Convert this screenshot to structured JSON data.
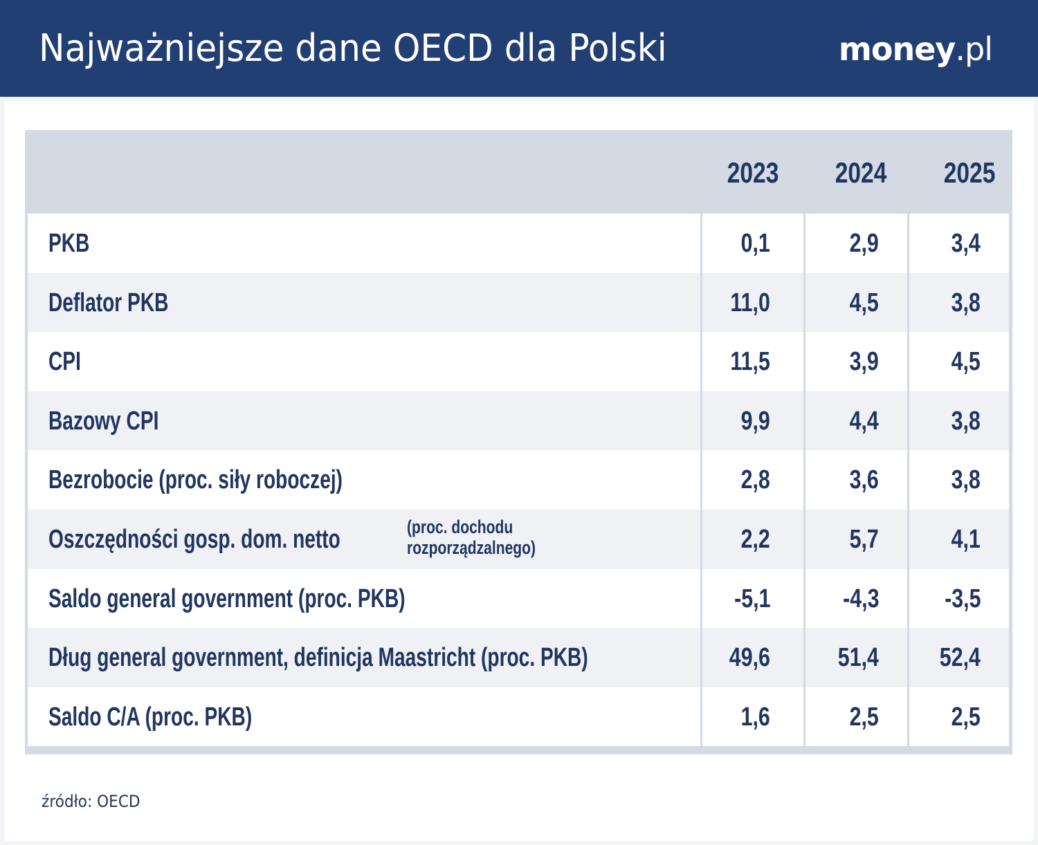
{
  "header": {
    "title": "Najważniejsze dane OECD dla Polski",
    "logo_main": "money",
    "logo_suffix": ".pl"
  },
  "chart_data": {
    "type": "table",
    "title": "Najważniejsze dane OECD dla Polski",
    "columns": [
      "2023",
      "2024",
      "2025"
    ],
    "rows": [
      {
        "label": "PKB",
        "note": "",
        "values": [
          "0,1",
          "2,9",
          "3,4"
        ]
      },
      {
        "label": "Deflator PKB",
        "note": "",
        "values": [
          "11,0",
          "4,5",
          "3,8"
        ]
      },
      {
        "label": "CPI",
        "note": "",
        "values": [
          "11,5",
          "3,9",
          "4,5"
        ]
      },
      {
        "label": "Bazowy CPI",
        "note": "",
        "values": [
          "9,9",
          "4,4",
          "3,8"
        ]
      },
      {
        "label": "Bezrobocie (proc. siły roboczej)",
        "note": "",
        "values": [
          "2,8",
          "3,6",
          "3,8"
        ]
      },
      {
        "label": "Oszczędności gosp. dom. netto",
        "note": "(proc. dochodu rozporządzalnego)",
        "note_lines": [
          "(proc. dochodu",
          "rozporządzalnego)"
        ],
        "values": [
          "2,2",
          "5,7",
          "4,1"
        ]
      },
      {
        "label": "Saldo general government (proc. PKB)",
        "note": "",
        "values": [
          "-5,1",
          "-4,3",
          "-3,5"
        ]
      },
      {
        "label": "Dług general government, definicja Maastricht (proc. PKB)",
        "note": "",
        "values": [
          "49,6",
          "51,4",
          "52,4"
        ]
      },
      {
        "label": "Saldo C/A (proc. PKB)",
        "note": "",
        "values": [
          "1,6",
          "2,5",
          "2,5"
        ]
      }
    ]
  },
  "footer": {
    "source": "źródło: OECD"
  },
  "colors": {
    "header_bg": "#223f73",
    "text": "#213560",
    "table_head": "#d3dae4",
    "row_alt": "#eff1f5"
  }
}
